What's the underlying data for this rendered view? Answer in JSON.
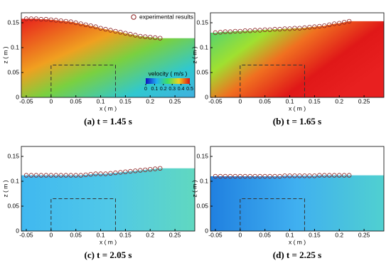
{
  "chart_data": [
    {
      "type": "scatter",
      "caption": "(a) t = 1.45 s",
      "xlabel": "x ( m )",
      "ylabel": "z ( m )",
      "xlim": [
        -0.06,
        0.29
      ],
      "ylim": [
        0,
        0.17
      ],
      "xticks": [
        -0.05,
        0,
        0.05,
        0.1,
        0.15,
        0.2,
        0.25
      ],
      "yticks": [
        0,
        0.05,
        0.1,
        0.15
      ],
      "colorbar": {
        "label": "velocity ( m/s )",
        "lim": [
          0,
          0.5
        ],
        "ticks": [
          0,
          0.1,
          0.2,
          0.3,
          0.4,
          0.5
        ]
      },
      "series": [
        {
          "name": "experimental results",
          "color": "#8b2020",
          "x": [
            -0.05,
            -0.04,
            -0.03,
            -0.02,
            -0.01,
            0,
            0.01,
            0.02,
            0.03,
            0.04,
            0.05,
            0.06,
            0.07,
            0.08,
            0.09,
            0.1,
            0.11,
            0.12,
            0.13,
            0.14,
            0.15,
            0.16,
            0.17,
            0.18,
            0.19,
            0.2,
            0.21,
            0.22
          ],
          "values": [
            0.158,
            0.158,
            0.158,
            0.157,
            0.157,
            0.156,
            0.155,
            0.154,
            0.153,
            0.152,
            0.15,
            0.148,
            0.146,
            0.144,
            0.142,
            0.139,
            0.137,
            0.135,
            0.133,
            0.131,
            0.129,
            0.127,
            0.125,
            0.123,
            0.122,
            0.121,
            0.12,
            0.119
          ]
        }
      ]
    },
    {
      "type": "scatter",
      "caption": "(b) t = 1.65 s",
      "xlabel": "x ( m )",
      "ylabel": "z ( m )",
      "xlim": [
        -0.06,
        0.29
      ],
      "ylim": [
        0,
        0.17
      ],
      "xticks": [
        -0.05,
        0,
        0.05,
        0.1,
        0.15,
        0.2,
        0.25
      ],
      "yticks": [
        0,
        0.05,
        0.1,
        0.15
      ],
      "series": [
        {
          "color": "#8b2020",
          "x": [
            -0.05,
            -0.04,
            -0.03,
            -0.02,
            -0.01,
            0,
            0.01,
            0.02,
            0.03,
            0.04,
            0.05,
            0.06,
            0.07,
            0.08,
            0.09,
            0.1,
            0.11,
            0.12,
            0.13,
            0.14,
            0.15,
            0.16,
            0.17,
            0.18,
            0.19,
            0.2,
            0.21,
            0.22
          ],
          "values": [
            0.13,
            0.131,
            0.132,
            0.132,
            0.133,
            0.133,
            0.134,
            0.134,
            0.135,
            0.135,
            0.136,
            0.136,
            0.137,
            0.137,
            0.138,
            0.138,
            0.139,
            0.139,
            0.14,
            0.141,
            0.142,
            0.143,
            0.144,
            0.146,
            0.148,
            0.149,
            0.151,
            0.153
          ]
        }
      ]
    },
    {
      "type": "scatter",
      "caption": "(c) t = 2.05 s",
      "xlabel": "x ( m )",
      "ylabel": "z ( m )",
      "xlim": [
        -0.06,
        0.29
      ],
      "ylim": [
        0,
        0.17
      ],
      "xticks": [
        -0.05,
        0,
        0.05,
        0.1,
        0.15,
        0.2,
        0.25
      ],
      "yticks": [
        0,
        0.05,
        0.1,
        0.15
      ],
      "series": [
        {
          "color": "#8b2020",
          "x": [
            -0.05,
            -0.04,
            -0.03,
            -0.02,
            -0.01,
            0,
            0.01,
            0.02,
            0.03,
            0.04,
            0.05,
            0.06,
            0.07,
            0.08,
            0.09,
            0.1,
            0.11,
            0.12,
            0.13,
            0.14,
            0.15,
            0.16,
            0.17,
            0.18,
            0.19,
            0.2,
            0.21,
            0.22
          ],
          "values": [
            0.112,
            0.112,
            0.112,
            0.112,
            0.112,
            0.112,
            0.112,
            0.112,
            0.112,
            0.112,
            0.112,
            0.112,
            0.113,
            0.114,
            0.115,
            0.115,
            0.115,
            0.116,
            0.117,
            0.118,
            0.119,
            0.12,
            0.121,
            0.122,
            0.123,
            0.124,
            0.125,
            0.126
          ]
        }
      ]
    },
    {
      "type": "scatter",
      "caption": "(d) t = 2.25 s",
      "xlabel": "x ( m )",
      "ylabel": "z ( m )",
      "xlim": [
        -0.06,
        0.29
      ],
      "ylim": [
        0,
        0.17
      ],
      "xticks": [
        -0.05,
        0,
        0.05,
        0.1,
        0.15,
        0.2,
        0.25
      ],
      "yticks": [
        0,
        0.05,
        0.1,
        0.15
      ],
      "series": [
        {
          "color": "#8b2020",
          "x": [
            -0.05,
            -0.04,
            -0.03,
            -0.02,
            -0.01,
            0,
            0.01,
            0.02,
            0.03,
            0.04,
            0.05,
            0.06,
            0.07,
            0.08,
            0.09,
            0.1,
            0.11,
            0.12,
            0.13,
            0.14,
            0.15,
            0.16,
            0.17,
            0.18,
            0.19,
            0.2,
            0.21,
            0.22
          ],
          "values": [
            0.11,
            0.11,
            0.11,
            0.11,
            0.11,
            0.11,
            0.11,
            0.11,
            0.11,
            0.11,
            0.11,
            0.11,
            0.11,
            0.11,
            0.111,
            0.111,
            0.111,
            0.111,
            0.111,
            0.111,
            0.111,
            0.112,
            0.112,
            0.112,
            0.112,
            0.112,
            0.112,
            0.112
          ]
        }
      ]
    }
  ]
}
